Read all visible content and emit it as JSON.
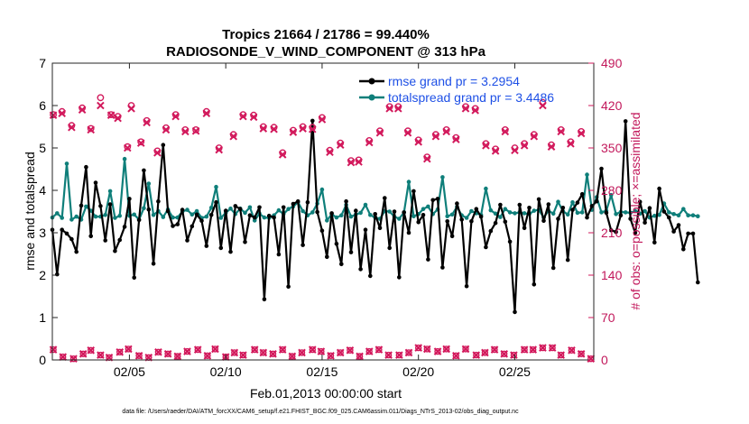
{
  "chart_data": {
    "type": "line",
    "title": "Tropics 21664 / 21786 = 99.440%",
    "subtitle": "RADIOSONDE_V_WIND_COMPONENT @ 313 hPa",
    "xlabel": "Feb.01,2013 00:00:00 start",
    "ylabel": "rmse and totalspread",
    "ylabel_right": "# of obs: o=possible; ×=assimilated",
    "footnote": "data file: /Users/raeder/DAI/ATM_forcXX/CAM6_setup/f.e21.FHIST_BGC.f09_025.CAM6assim.011/Diags_NTrS_2013-02/obs_diag_output.nc",
    "xlim": [
      1,
      29.1
    ],
    "ylim": [
      0,
      7
    ],
    "ylim_right": [
      0,
      490
    ],
    "x_tick_values": [
      5,
      10,
      15,
      20,
      25
    ],
    "x_tick_labels": [
      "02/05",
      "02/10",
      "02/15",
      "02/20",
      "02/25"
    ],
    "y_ticks": [
      "0",
      "1",
      "2",
      "3",
      "4",
      "5",
      "6",
      "7"
    ],
    "y_ticks_right": [
      "0",
      "70",
      "140",
      "210",
      "280",
      "350",
      "420",
      "490"
    ],
    "legend_position": "top-right",
    "colors": {
      "rmse": "#000000",
      "spread": "#0f7f7a",
      "obs": "#d2185b",
      "legend_text": "#1e50e6"
    },
    "series": [
      {
        "name": "rmse grand pr = 3.2954",
        "x0": 1.0,
        "dx": 0.25,
        "values": [
          3.07,
          2.02,
          3.07,
          2.98,
          2.85,
          2.55,
          3.64,
          4.55,
          2.92,
          4.18,
          3.63,
          2.82,
          3.67,
          2.57,
          2.83,
          3.14,
          3.8,
          1.94,
          3.3,
          4.47,
          3.55,
          2.27,
          3.74,
          5.07,
          3.51,
          3.16,
          3.2,
          3.54,
          2.82,
          3.15,
          3.43,
          3.28,
          2.69,
          3.42,
          3.72,
          2.64,
          3.52,
          2.55,
          3.63,
          3.56,
          2.78,
          3.41,
          3.36,
          3.6,
          1.43,
          3.4,
          3.36,
          2.49,
          3.6,
          1.73,
          3.68,
          3.74,
          2.71,
          3.72,
          5.64,
          3.49,
          3.05,
          2.43,
          3.46,
          2.74,
          2.26,
          3.74,
          2.54,
          3.52,
          2.14,
          3.07,
          1.98,
          3.44,
          3.11,
          3.82,
          2.64,
          3.5,
          1.95,
          3.48,
          3.0,
          3.98,
          3.25,
          3.42,
          2.37,
          3.77,
          3.8,
          2.18,
          3.27,
          2.92,
          3.69,
          3.31,
          1.74,
          3.27,
          3.56,
          3.38,
          2.66,
          3.04,
          3.23,
          3.66,
          3.26,
          2.79,
          1.13,
          3.66,
          3.11,
          3.59,
          1.78,
          3.79,
          3.28,
          3.67,
          2.17,
          3.33,
          3.59,
          2.36,
          3.54,
          3.71,
          3.91,
          3.36,
          3.63,
          3.74,
          4.51,
          3.47,
          3.06,
          3.02,
          3.41,
          5.63,
          3.33,
          3.0,
          3.73,
          3.24,
          3.58,
          2.77,
          4.04,
          3.5,
          3.36,
          3.03,
          3.18,
          2.61,
          2.98,
          2.98,
          1.83
        ]
      },
      {
        "name": "totalspread grand pr = 3.4486",
        "x0": 1.0,
        "dx": 0.25,
        "values": [
          3.36,
          3.46,
          3.35,
          4.63,
          3.31,
          3.38,
          3.31,
          3.62,
          3.52,
          3.38,
          3.38,
          3.42,
          3.98,
          3.35,
          3.4,
          4.74,
          3.4,
          3.43,
          3.31,
          3.58,
          4.16,
          3.42,
          3.51,
          3.37,
          3.55,
          3.36,
          3.36,
          3.5,
          3.54,
          3.43,
          3.51,
          3.35,
          3.38,
          3.59,
          4.08,
          3.35,
          3.47,
          3.57,
          3.44,
          3.57,
          3.47,
          3.6,
          3.29,
          3.45,
          3.36,
          3.35,
          3.41,
          3.53,
          3.44,
          3.56,
          3.62,
          3.72,
          3.51,
          3.41,
          3.48,
          3.69,
          4.02,
          3.29,
          3.44,
          3.36,
          3.41,
          3.66,
          3.38,
          3.43,
          3.47,
          3.66,
          3.42,
          3.36,
          3.33,
          3.51,
          3.5,
          3.38,
          3.33,
          3.48,
          4.2,
          3.39,
          3.44,
          3.56,
          3.62,
          3.44,
          3.55,
          4.31,
          3.39,
          3.43,
          3.61,
          3.41,
          3.35,
          3.51,
          3.46,
          3.42,
          4.04,
          3.53,
          3.45,
          3.37,
          3.56,
          3.48,
          3.46,
          3.48,
          3.46,
          3.44,
          3.52,
          3.54,
          3.36,
          3.52,
          3.45,
          3.73,
          3.51,
          3.43,
          3.72,
          3.47,
          3.48,
          4.37,
          3.54,
          3.84,
          3.48,
          3.52,
          3.89,
          3.44,
          3.49,
          3.48,
          3.47,
          3.51,
          3.45,
          3.51,
          3.36,
          3.4,
          3.42,
          3.69,
          3.48,
          3.44,
          3.41,
          3.56,
          3.41,
          3.41,
          3.39
        ]
      }
    ],
    "obs_possible": [
      [
        1.05,
        405
      ],
      [
        1.5,
        410
      ],
      [
        2.0,
        387
      ],
      [
        2.55,
        416
      ],
      [
        3.0,
        382
      ],
      [
        3.5,
        433
      ],
      [
        4.05,
        405
      ],
      [
        4.4,
        402
      ],
      [
        4.9,
        352
      ],
      [
        5.1,
        420
      ],
      [
        5.6,
        360
      ],
      [
        5.9,
        395
      ],
      [
        6.45,
        345
      ],
      [
        6.9,
        383
      ],
      [
        7.4,
        405
      ],
      [
        7.9,
        380
      ],
      [
        8.45,
        380
      ],
      [
        9.0,
        410
      ],
      [
        9.65,
        350
      ],
      [
        10.4,
        372
      ],
      [
        10.9,
        405
      ],
      [
        11.45,
        404
      ],
      [
        11.95,
        385
      ],
      [
        12.5,
        384
      ],
      [
        12.95,
        342
      ],
      [
        13.5,
        379
      ],
      [
        14.0,
        385
      ],
      [
        14.5,
        384
      ],
      [
        15.0,
        400
      ],
      [
        15.4,
        346
      ],
      [
        15.95,
        358
      ],
      [
        16.5,
        329
      ],
      [
        16.9,
        330
      ],
      [
        17.45,
        362
      ],
      [
        18.0,
        378
      ],
      [
        18.5,
        418
      ],
      [
        18.95,
        418
      ],
      [
        19.45,
        378
      ],
      [
        20.0,
        363
      ],
      [
        20.45,
        335
      ],
      [
        20.9,
        372
      ],
      [
        21.45,
        380
      ],
      [
        21.95,
        367
      ],
      [
        22.45,
        418
      ],
      [
        22.95,
        415
      ],
      [
        23.5,
        357
      ],
      [
        24.0,
        348
      ],
      [
        24.5,
        380
      ],
      [
        25.0,
        350
      ],
      [
        25.5,
        357
      ],
      [
        26.0,
        372
      ],
      [
        26.45,
        425
      ],
      [
        26.9,
        355
      ],
      [
        27.4,
        380
      ],
      [
        27.9,
        360
      ],
      [
        28.45,
        377
      ]
    ],
    "obs_assimilated": [
      [
        1.05,
        404
      ],
      [
        1.5,
        407
      ],
      [
        2.0,
        384
      ],
      [
        2.55,
        413
      ],
      [
        3.0,
        380
      ],
      [
        3.5,
        420
      ],
      [
        4.05,
        404
      ],
      [
        4.4,
        399
      ],
      [
        4.9,
        350
      ],
      [
        5.1,
        415
      ],
      [
        5.6,
        358
      ],
      [
        5.9,
        392
      ],
      [
        6.45,
        342
      ],
      [
        6.9,
        380
      ],
      [
        7.4,
        402
      ],
      [
        7.9,
        377
      ],
      [
        8.45,
        378
      ],
      [
        9.0,
        407
      ],
      [
        9.65,
        347
      ],
      [
        10.4,
        369
      ],
      [
        10.9,
        402
      ],
      [
        11.45,
        401
      ],
      [
        11.95,
        382
      ],
      [
        12.5,
        381
      ],
      [
        12.95,
        339
      ],
      [
        13.5,
        376
      ],
      [
        14.0,
        382
      ],
      [
        14.5,
        381
      ],
      [
        15.0,
        397
      ],
      [
        15.4,
        343
      ],
      [
        15.95,
        355
      ],
      [
        16.5,
        326
      ],
      [
        16.9,
        327
      ],
      [
        17.45,
        359
      ],
      [
        18.0,
        375
      ],
      [
        18.5,
        415
      ],
      [
        18.95,
        415
      ],
      [
        19.45,
        375
      ],
      [
        20.0,
        360
      ],
      [
        20.45,
        332
      ],
      [
        20.9,
        369
      ],
      [
        21.45,
        377
      ],
      [
        21.95,
        364
      ],
      [
        22.45,
        415
      ],
      [
        22.95,
        412
      ],
      [
        23.5,
        354
      ],
      [
        24.0,
        345
      ],
      [
        24.5,
        377
      ],
      [
        25.0,
        346
      ],
      [
        25.5,
        354
      ],
      [
        26.0,
        369
      ],
      [
        26.45,
        420
      ],
      [
        26.9,
        352
      ],
      [
        27.4,
        377
      ],
      [
        27.9,
        357
      ],
      [
        28.45,
        374
      ]
    ],
    "obs_bottom": [
      [
        1.05,
        17
      ],
      [
        1.55,
        5
      ],
      [
        2.1,
        2
      ],
      [
        2.6,
        10
      ],
      [
        3.0,
        16
      ],
      [
        3.5,
        8
      ],
      [
        3.95,
        4
      ],
      [
        4.5,
        13
      ],
      [
        4.95,
        18
      ],
      [
        5.5,
        7
      ],
      [
        6.0,
        4
      ],
      [
        6.5,
        13
      ],
      [
        7.0,
        10
      ],
      [
        7.5,
        6
      ],
      [
        8.0,
        14
      ],
      [
        8.55,
        17
      ],
      [
        9.05,
        7
      ],
      [
        9.45,
        18
      ],
      [
        10.0,
        5
      ],
      [
        10.45,
        12
      ],
      [
        10.9,
        8
      ],
      [
        11.5,
        17
      ],
      [
        11.95,
        12
      ],
      [
        12.45,
        10
      ],
      [
        12.95,
        17
      ],
      [
        13.45,
        6
      ],
      [
        13.95,
        12
      ],
      [
        14.5,
        17
      ],
      [
        14.95,
        14
      ],
      [
        15.45,
        7
      ],
      [
        15.95,
        12
      ],
      [
        16.45,
        16
      ],
      [
        16.95,
        6
      ],
      [
        17.45,
        14
      ],
      [
        17.95,
        17
      ],
      [
        18.45,
        8
      ],
      [
        19.0,
        8
      ],
      [
        19.5,
        12
      ],
      [
        20.0,
        20
      ],
      [
        20.45,
        18
      ],
      [
        21.0,
        14
      ],
      [
        21.45,
        18
      ],
      [
        21.95,
        7
      ],
      [
        22.45,
        18
      ],
      [
        23.0,
        8
      ],
      [
        23.45,
        12
      ],
      [
        23.95,
        17
      ],
      [
        24.45,
        10
      ],
      [
        24.95,
        8
      ],
      [
        25.5,
        17
      ],
      [
        25.95,
        17
      ],
      [
        26.45,
        20
      ],
      [
        26.95,
        20
      ],
      [
        27.4,
        8
      ],
      [
        27.95,
        16
      ],
      [
        28.45,
        10
      ],
      [
        28.95,
        2
      ]
    ]
  }
}
